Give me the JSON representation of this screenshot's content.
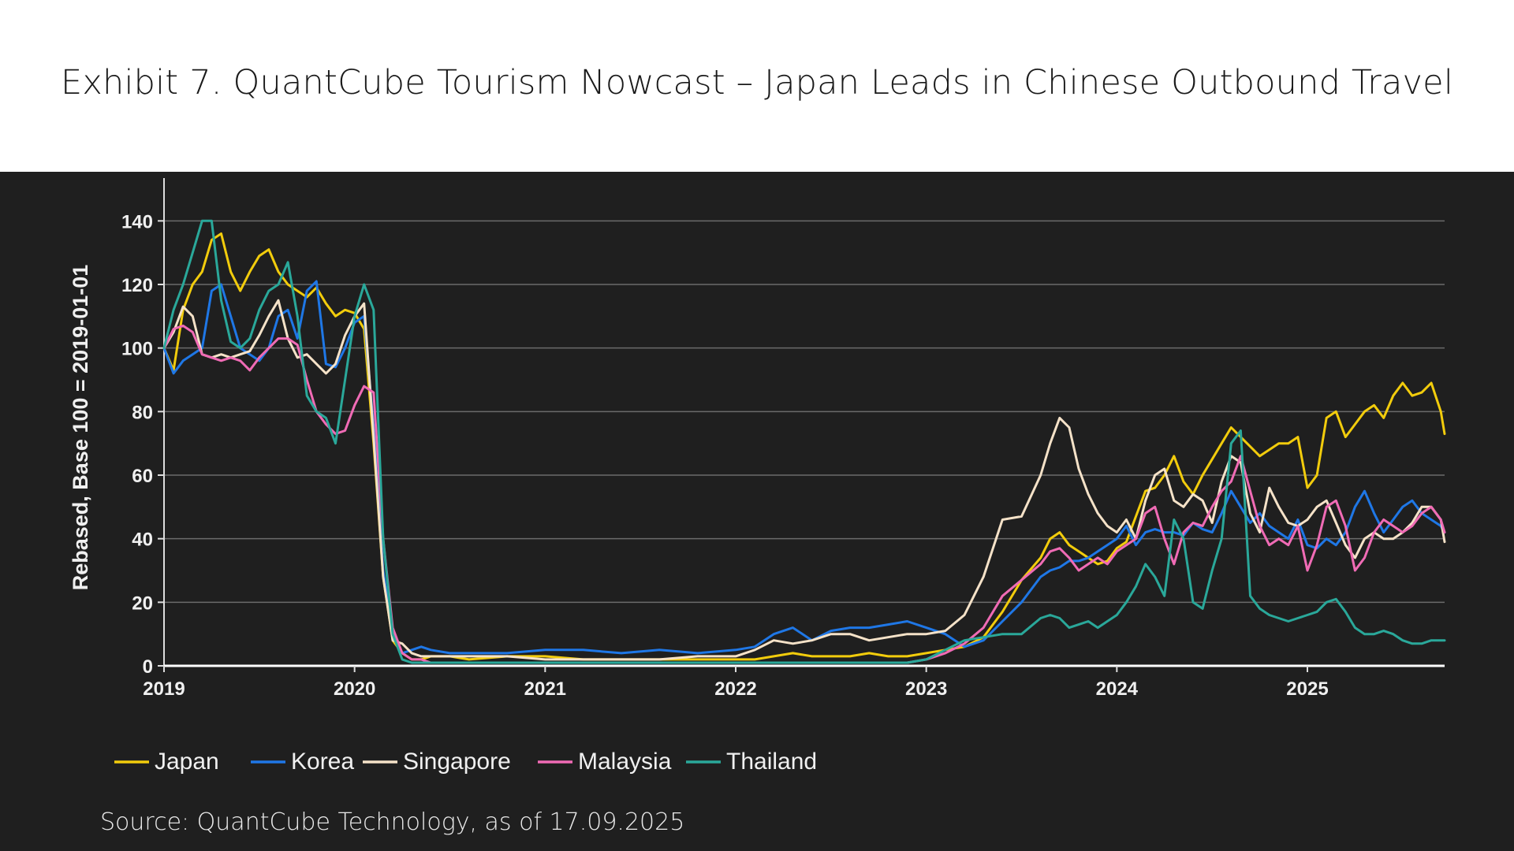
{
  "title": "Exhibit 7. QuantCube Tourism Nowcast – Japan Leads in Chinese Outbound Travel",
  "source": "Source: QuantCube Technology, as of 17.09.2025",
  "chart_data": {
    "type": "line",
    "title": "Exhibit 7. QuantCube Tourism Nowcast – Japan Leads in Chinese Outbound Travel",
    "xlabel": "",
    "ylabel": "Rebased, Base 100 = 2019-01-01",
    "xlim": [
      2019.0,
      2025.72
    ],
    "ylim": [
      0,
      150
    ],
    "x_ticks": [
      2019,
      2020,
      2021,
      2022,
      2023,
      2024,
      2025
    ],
    "x_tick_labels": [
      "2019",
      "2020",
      "2021",
      "2022",
      "2023",
      "2024",
      "2025"
    ],
    "y_ticks": [
      0,
      20,
      40,
      60,
      80,
      100,
      120,
      140
    ],
    "y_tick_labels": [
      "0",
      "20",
      "40",
      "60",
      "80",
      "100",
      "120",
      "140"
    ],
    "grid": true,
    "legend_position": "bottom-left",
    "series": [
      {
        "name": "Japan",
        "color": "#f2cc0c",
        "x": [
          2019.0,
          2019.05,
          2019.1,
          2019.15,
          2019.2,
          2019.25,
          2019.3,
          2019.35,
          2019.4,
          2019.45,
          2019.5,
          2019.55,
          2019.6,
          2019.65,
          2019.7,
          2019.75,
          2019.8,
          2019.85,
          2019.9,
          2019.95,
          2020.0,
          2020.05,
          2020.1,
          2020.15,
          2020.2,
          2020.25,
          2020.3,
          2020.35,
          2020.4,
          2020.5,
          2020.6,
          2020.8,
          2021.0,
          2021.2,
          2021.4,
          2021.6,
          2021.8,
          2022.0,
          2022.1,
          2022.2,
          2022.3,
          2022.4,
          2022.5,
          2022.6,
          2022.7,
          2022.8,
          2022.9,
          2023.0,
          2023.1,
          2023.2,
          2023.3,
          2023.4,
          2023.5,
          2023.6,
          2023.65,
          2023.7,
          2023.75,
          2023.8,
          2023.85,
          2023.9,
          2023.95,
          2024.0,
          2024.05,
          2024.1,
          2024.15,
          2024.2,
          2024.25,
          2024.3,
          2024.35,
          2024.4,
          2024.45,
          2024.5,
          2024.55,
          2024.6,
          2024.65,
          2024.7,
          2024.75,
          2024.8,
          2024.85,
          2024.9,
          2024.95,
          2025.0,
          2025.05,
          2025.1,
          2025.15,
          2025.2,
          2025.25,
          2025.3,
          2025.35,
          2025.4,
          2025.45,
          2025.5,
          2025.55,
          2025.6,
          2025.65,
          2025.7,
          2025.72
        ],
        "y": [
          100,
          93,
          112,
          120,
          124,
          134,
          136,
          124,
          118,
          124,
          129,
          131,
          124,
          120,
          118,
          116,
          119,
          114,
          110,
          112,
          111,
          106,
          70,
          28,
          8,
          4,
          2,
          2,
          3,
          3,
          2,
          3,
          3,
          2,
          2,
          2,
          2,
          2,
          2,
          3,
          4,
          3,
          3,
          3,
          4,
          3,
          3,
          4,
          5,
          6,
          9,
          17,
          27,
          34,
          40,
          42,
          38,
          36,
          34,
          32,
          33,
          37,
          39,
          47,
          55,
          56,
          60,
          66,
          58,
          54,
          60,
          65,
          70,
          75,
          72,
          69,
          66,
          68,
          70,
          70,
          72,
          56,
          60,
          78,
          80,
          72,
          76,
          80,
          82,
          78,
          85,
          89,
          85,
          86,
          89,
          80,
          73
        ]
      },
      {
        "name": "Korea",
        "color": "#1f77e6",
        "x": [
          2019.0,
          2019.05,
          2019.1,
          2019.15,
          2019.2,
          2019.25,
          2019.3,
          2019.35,
          2019.4,
          2019.45,
          2019.5,
          2019.55,
          2019.6,
          2019.65,
          2019.7,
          2019.75,
          2019.8,
          2019.85,
          2019.9,
          2019.95,
          2020.0,
          2020.05,
          2020.1,
          2020.15,
          2020.2,
          2020.25,
          2020.3,
          2020.35,
          2020.4,
          2020.5,
          2020.6,
          2020.8,
          2021.0,
          2021.2,
          2021.4,
          2021.6,
          2021.8,
          2022.0,
          2022.1,
          2022.2,
          2022.3,
          2022.4,
          2022.5,
          2022.6,
          2022.7,
          2022.8,
          2022.9,
          2023.0,
          2023.1,
          2023.2,
          2023.3,
          2023.4,
          2023.5,
          2023.6,
          2023.65,
          2023.7,
          2023.75,
          2023.8,
          2023.85,
          2023.9,
          2023.95,
          2024.0,
          2024.05,
          2024.1,
          2024.15,
          2024.2,
          2024.25,
          2024.3,
          2024.35,
          2024.4,
          2024.45,
          2024.5,
          2024.55,
          2024.6,
          2024.65,
          2024.7,
          2024.75,
          2024.8,
          2024.85,
          2024.9,
          2024.95,
          2025.0,
          2025.05,
          2025.1,
          2025.15,
          2025.2,
          2025.25,
          2025.3,
          2025.35,
          2025.4,
          2025.45,
          2025.5,
          2025.55,
          2025.6,
          2025.65,
          2025.7,
          2025.72
        ],
        "y": [
          100,
          92,
          96,
          98,
          100,
          118,
          120,
          110,
          100,
          98,
          96,
          100,
          110,
          112,
          103,
          118,
          121,
          95,
          94,
          100,
          108,
          110,
          75,
          30,
          10,
          4,
          5,
          6,
          5,
          4,
          4,
          4,
          5,
          5,
          4,
          5,
          4,
          5,
          6,
          10,
          12,
          8,
          11,
          12,
          12,
          13,
          14,
          12,
          10,
          6,
          8,
          14,
          20,
          28,
          30,
          31,
          33,
          33,
          34,
          36,
          38,
          40,
          44,
          38,
          42,
          43,
          42,
          42,
          41,
          45,
          43,
          42,
          48,
          55,
          50,
          45,
          48,
          44,
          42,
          40,
          46,
          38,
          37,
          40,
          38,
          42,
          50,
          55,
          48,
          42,
          46,
          50,
          52,
          48,
          46,
          44,
          42
        ]
      },
      {
        "name": "Singapore",
        "color": "#f5e2c8",
        "x": [
          2019.0,
          2019.05,
          2019.1,
          2019.15,
          2019.2,
          2019.25,
          2019.3,
          2019.35,
          2019.4,
          2019.45,
          2019.5,
          2019.55,
          2019.6,
          2019.65,
          2019.7,
          2019.75,
          2019.8,
          2019.85,
          2019.9,
          2019.95,
          2020.0,
          2020.05,
          2020.1,
          2020.15,
          2020.2,
          2020.25,
          2020.3,
          2020.35,
          2020.4,
          2020.5,
          2020.6,
          2020.8,
          2021.0,
          2021.2,
          2021.4,
          2021.6,
          2021.8,
          2022.0,
          2022.1,
          2022.2,
          2022.3,
          2022.4,
          2022.5,
          2022.6,
          2022.7,
          2022.8,
          2022.9,
          2023.0,
          2023.1,
          2023.2,
          2023.3,
          2023.4,
          2023.5,
          2023.6,
          2023.65,
          2023.7,
          2023.75,
          2023.8,
          2023.85,
          2023.9,
          2023.95,
          2024.0,
          2024.05,
          2024.1,
          2024.15,
          2024.2,
          2024.25,
          2024.3,
          2024.35,
          2024.4,
          2024.45,
          2024.5,
          2024.55,
          2024.6,
          2024.65,
          2024.7,
          2024.75,
          2024.8,
          2024.85,
          2024.9,
          2024.95,
          2025.0,
          2025.05,
          2025.1,
          2025.15,
          2025.2,
          2025.25,
          2025.3,
          2025.35,
          2025.4,
          2025.45,
          2025.5,
          2025.55,
          2025.6,
          2025.65,
          2025.7,
          2025.72
        ],
        "y": [
          100,
          105,
          113,
          110,
          98,
          97,
          98,
          97,
          98,
          99,
          104,
          110,
          115,
          103,
          97,
          98,
          95,
          92,
          95,
          104,
          110,
          114,
          72,
          28,
          8,
          7,
          4,
          3,
          3,
          3,
          3,
          3,
          2,
          2,
          2,
          2,
          3,
          3,
          5,
          8,
          7,
          8,
          10,
          10,
          8,
          9,
          10,
          10,
          11,
          16,
          28,
          46,
          47,
          60,
          70,
          78,
          75,
          62,
          54,
          48,
          44,
          42,
          46,
          40,
          52,
          60,
          62,
          52,
          50,
          54,
          52,
          45,
          58,
          66,
          64,
          48,
          42,
          56,
          50,
          45,
          44,
          46,
          50,
          52,
          45,
          38,
          34,
          40,
          42,
          40,
          40,
          42,
          45,
          50,
          50,
          46,
          39
        ]
      },
      {
        "name": "Malaysia",
        "color": "#f06bb5",
        "x": [
          2019.0,
          2019.05,
          2019.1,
          2019.15,
          2019.2,
          2019.25,
          2019.3,
          2019.35,
          2019.4,
          2019.45,
          2019.5,
          2019.55,
          2019.6,
          2019.65,
          2019.7,
          2019.75,
          2019.8,
          2019.85,
          2019.9,
          2019.95,
          2020.0,
          2020.05,
          2020.1,
          2020.15,
          2020.2,
          2020.25,
          2020.3,
          2020.35,
          2020.4,
          2020.5,
          2020.6,
          2020.8,
          2021.0,
          2021.2,
          2021.4,
          2021.6,
          2021.8,
          2022.0,
          2022.1,
          2022.2,
          2022.3,
          2022.4,
          2022.5,
          2022.6,
          2022.7,
          2022.8,
          2022.9,
          2023.0,
          2023.1,
          2023.2,
          2023.3,
          2023.4,
          2023.5,
          2023.6,
          2023.65,
          2023.7,
          2023.75,
          2023.8,
          2023.85,
          2023.9,
          2023.95,
          2024.0,
          2024.05,
          2024.1,
          2024.15,
          2024.2,
          2024.25,
          2024.3,
          2024.35,
          2024.4,
          2024.45,
          2024.5,
          2024.55,
          2024.6,
          2024.65,
          2024.7,
          2024.75,
          2024.8,
          2024.85,
          2024.9,
          2024.95,
          2025.0,
          2025.05,
          2025.1,
          2025.15,
          2025.2,
          2025.25,
          2025.3,
          2025.35,
          2025.4,
          2025.45,
          2025.5,
          2025.55,
          2025.6,
          2025.65,
          2025.7,
          2025.72
        ],
        "y": [
          100,
          106,
          107,
          105,
          98,
          97,
          96,
          97,
          96,
          93,
          97,
          100,
          103,
          103,
          101,
          90,
          80,
          76,
          73,
          74,
          82,
          88,
          86,
          40,
          12,
          4,
          2,
          2,
          1,
          1,
          1,
          1,
          1,
          1,
          1,
          1,
          1,
          1,
          1,
          1,
          1,
          1,
          1,
          1,
          1,
          1,
          1,
          2,
          4,
          7,
          12,
          22,
          27,
          32,
          36,
          37,
          34,
          30,
          32,
          34,
          32,
          36,
          38,
          40,
          48,
          50,
          40,
          32,
          42,
          45,
          44,
          50,
          55,
          58,
          66,
          55,
          44,
          38,
          40,
          38,
          44,
          30,
          38,
          50,
          52,
          44,
          30,
          34,
          42,
          46,
          44,
          42,
          44,
          48,
          50,
          46,
          42
        ]
      },
      {
        "name": "Thailand",
        "color": "#2aa89a",
        "x": [
          2019.0,
          2019.05,
          2019.1,
          2019.15,
          2019.2,
          2019.25,
          2019.3,
          2019.35,
          2019.4,
          2019.45,
          2019.5,
          2019.55,
          2019.6,
          2019.65,
          2019.7,
          2019.75,
          2019.8,
          2019.85,
          2019.9,
          2019.95,
          2020.0,
          2020.05,
          2020.1,
          2020.15,
          2020.2,
          2020.25,
          2020.3,
          2020.35,
          2020.4,
          2020.5,
          2020.6,
          2020.8,
          2021.0,
          2021.2,
          2021.4,
          2021.6,
          2021.8,
          2022.0,
          2022.1,
          2022.2,
          2022.3,
          2022.4,
          2022.5,
          2022.6,
          2022.7,
          2022.8,
          2022.9,
          2023.0,
          2023.1,
          2023.2,
          2023.3,
          2023.4,
          2023.5,
          2023.6,
          2023.65,
          2023.7,
          2023.75,
          2023.8,
          2023.85,
          2023.9,
          2023.95,
          2024.0,
          2024.05,
          2024.1,
          2024.15,
          2024.2,
          2024.25,
          2024.3,
          2024.35,
          2024.4,
          2024.45,
          2024.5,
          2024.55,
          2024.6,
          2024.65,
          2024.7,
          2024.75,
          2024.8,
          2024.85,
          2024.9,
          2024.95,
          2025.0,
          2025.05,
          2025.1,
          2025.15,
          2025.2,
          2025.25,
          2025.3,
          2025.35,
          2025.4,
          2025.45,
          2025.5,
          2025.55,
          2025.6,
          2025.65,
          2025.7,
          2025.72
        ],
        "y": [
          100,
          112,
          120,
          130,
          140,
          140,
          115,
          102,
          100,
          103,
          112,
          118,
          120,
          127,
          110,
          85,
          80,
          78,
          70,
          90,
          110,
          120,
          112,
          40,
          10,
          2,
          1,
          1,
          1,
          1,
          1,
          1,
          1,
          1,
          1,
          1,
          1,
          1,
          1,
          1,
          1,
          1,
          1,
          1,
          1,
          1,
          1,
          2,
          5,
          8,
          9,
          10,
          10,
          15,
          16,
          15,
          12,
          13,
          14,
          12,
          14,
          16,
          20,
          25,
          32,
          28,
          22,
          46,
          40,
          20,
          18,
          30,
          40,
          70,
          74,
          22,
          18,
          16,
          15,
          14,
          15,
          16,
          17,
          20,
          21,
          17,
          12,
          10,
          10,
          11,
          10,
          8,
          7,
          7,
          8,
          8,
          8
        ]
      }
    ]
  }
}
